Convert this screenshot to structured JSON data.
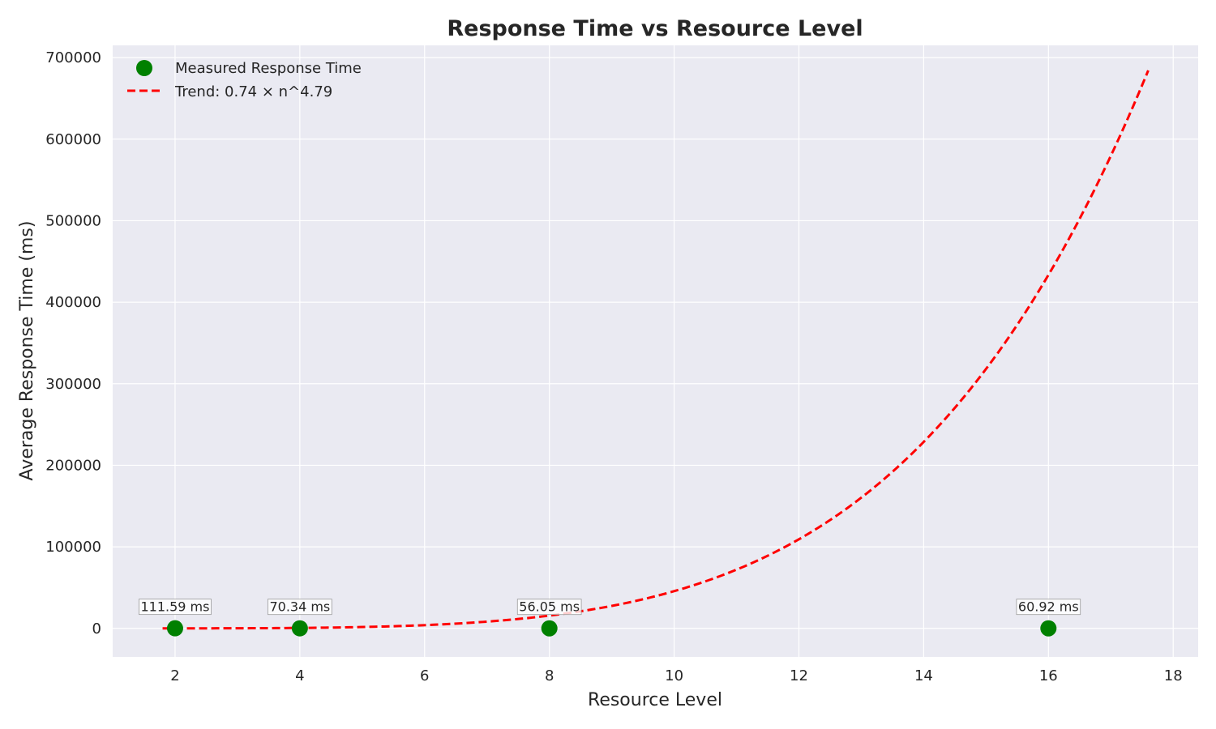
{
  "chart_data": {
    "type": "scatter",
    "title": "Response Time vs Resource Level",
    "xlabel": "Resource Level",
    "ylabel": "Average Response Time (ms)",
    "xlim": [
      1,
      18.4
    ],
    "ylim": [
      -35000,
      715000
    ],
    "x_ticks": [
      2,
      4,
      6,
      8,
      10,
      12,
      14,
      16,
      18
    ],
    "y_ticks": [
      0,
      100000,
      200000,
      300000,
      400000,
      500000,
      600000,
      700000
    ],
    "grid": true,
    "legend_position": "top-left",
    "series": [
      {
        "name": "Measured Response Time",
        "kind": "scatter",
        "color": "#008000",
        "x": [
          2,
          4,
          8,
          16
        ],
        "y": [
          111.59,
          70.34,
          56.05,
          60.92
        ],
        "labels": [
          "111.59 ms",
          "70.34 ms",
          "56.05 ms",
          "60.92 ms"
        ]
      },
      {
        "name": "Trend: 0.74 × n^4.79",
        "kind": "line",
        "style": "dashed",
        "color": "#ff0000",
        "function": {
          "coef": 0.74,
          "exponent": 4.79
        },
        "x_range": [
          1.8,
          17.6
        ]
      }
    ]
  }
}
